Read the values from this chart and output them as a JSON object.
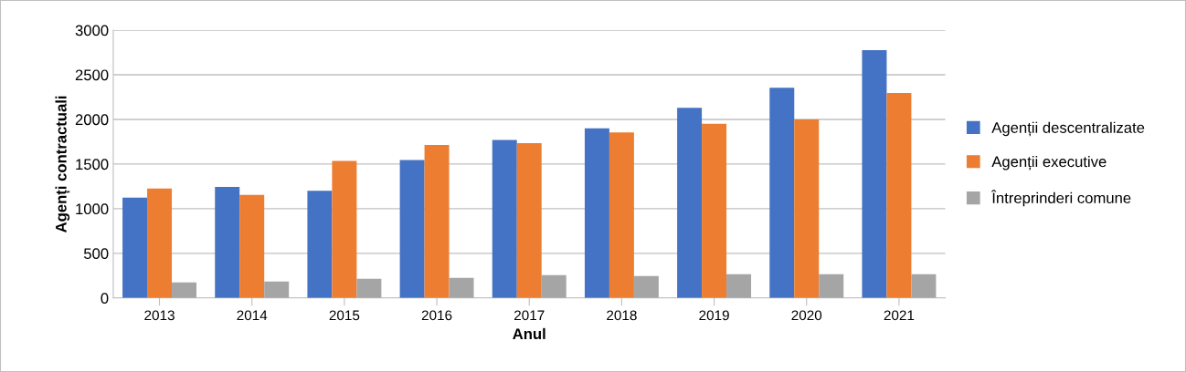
{
  "chart_data": {
    "type": "bar",
    "xlabel": "Anul",
    "ylabel": "Agenți contractuali",
    "categories": [
      "2013",
      "2014",
      "2015",
      "2016",
      "2017",
      "2018",
      "2019",
      "2020",
      "2021"
    ],
    "series": [
      {
        "name": "Agenții descentralizate",
        "color": "#4472c4",
        "values": [
          1125,
          1245,
          1200,
          1545,
          1770,
          1900,
          2130,
          2355,
          2775
        ]
      },
      {
        "name": "Agenții executive",
        "color": "#ed7d31",
        "values": [
          1225,
          1155,
          1535,
          1715,
          1735,
          1855,
          1950,
          2000,
          2295
        ]
      },
      {
        "name": "Întreprinderi comune",
        "color": "#a5a5a5",
        "values": [
          175,
          185,
          215,
          225,
          255,
          245,
          265,
          265,
          265
        ]
      }
    ],
    "ylim": [
      0,
      3000
    ],
    "yticks": [
      0,
      500,
      1000,
      1500,
      2000,
      2500,
      3000
    ],
    "grid": "y",
    "legend": "right"
  }
}
